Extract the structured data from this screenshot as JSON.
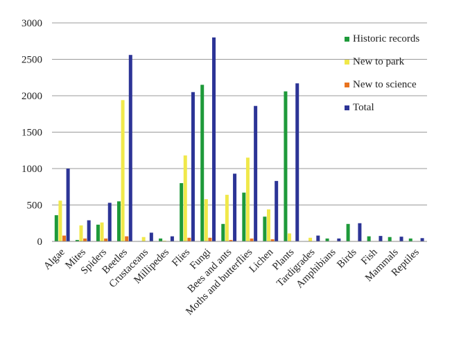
{
  "chart_data": {
    "type": "bar",
    "title": "",
    "xlabel": "",
    "ylabel": "",
    "ylim": [
      0,
      3000
    ],
    "yticks": [
      0,
      500,
      1000,
      1500,
      2000,
      2500,
      3000
    ],
    "grid": "horizontal",
    "legend_position": "top-right",
    "categories": [
      "Algae",
      "Mites",
      "Spiders",
      "Beetles",
      "Crustaceans",
      "Millipedes",
      "Flies",
      "Fungi",
      "Bees and ants",
      "Moths and butterflies",
      "Lichen",
      "Plants",
      "Tardigrades",
      "Amphibians",
      "Birds",
      "Fish",
      "Mammals",
      "Reptiles"
    ],
    "series": [
      {
        "name": "Historic records",
        "color": "#1e9a3a",
        "values": [
          360,
          20,
          230,
          550,
          5,
          40,
          800,
          2150,
          240,
          670,
          340,
          2060,
          5,
          40,
          240,
          70,
          60,
          40
        ]
      },
      {
        "name": "New to park",
        "color": "#f0e84a",
        "values": [
          560,
          220,
          260,
          1940,
          60,
          10,
          1180,
          580,
          640,
          1150,
          440,
          110,
          50,
          5,
          5,
          5,
          5,
          5
        ]
      },
      {
        "name": "New to science",
        "color": "#e8731f",
        "values": [
          80,
          40,
          40,
          70,
          5,
          5,
          50,
          50,
          20,
          40,
          30,
          5,
          5,
          5,
          5,
          5,
          5,
          5
        ]
      },
      {
        "name": "Total",
        "color": "#2c3496",
        "values": [
          1000,
          290,
          530,
          2560,
          120,
          70,
          2050,
          2800,
          930,
          1860,
          830,
          2170,
          80,
          40,
          250,
          75,
          65,
          45
        ]
      }
    ]
  }
}
